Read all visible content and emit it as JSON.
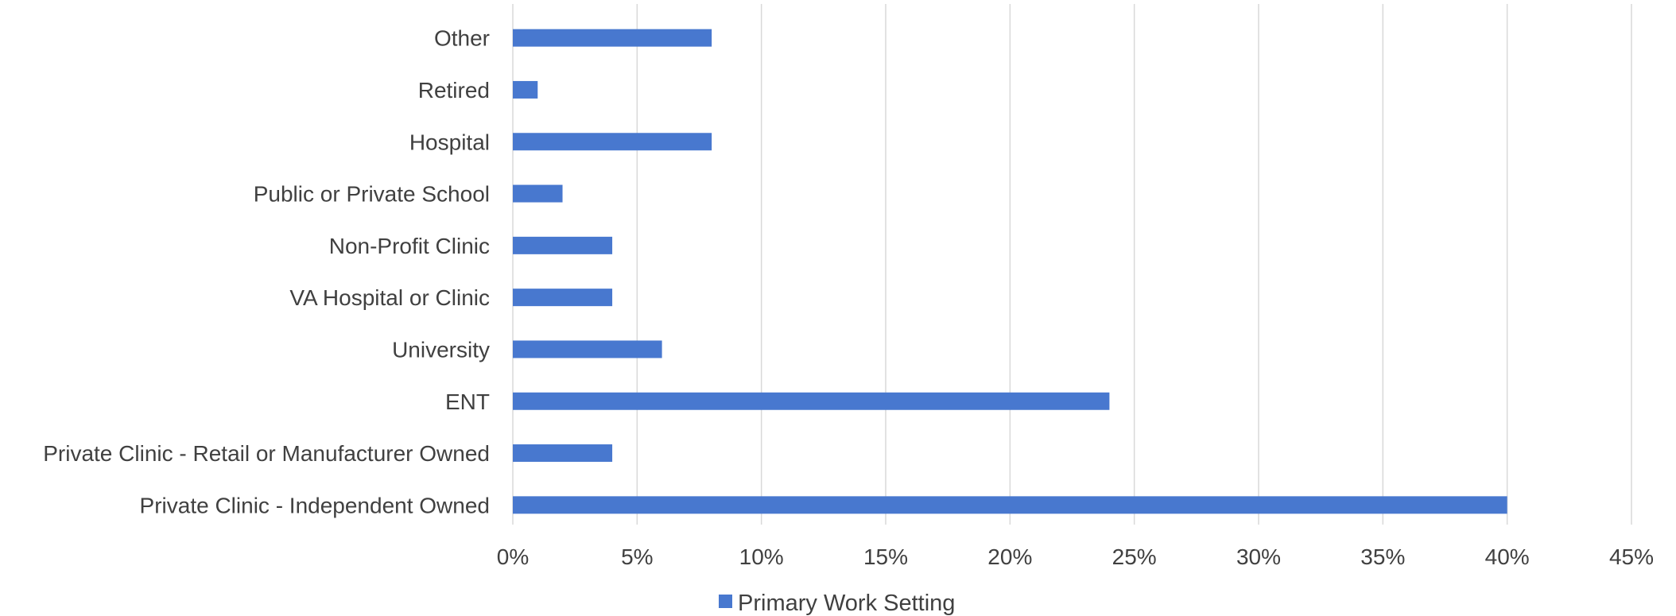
{
  "chart_data": {
    "type": "bar",
    "orientation": "horizontal",
    "categories": [
      "Other",
      "Retired",
      "Hospital",
      "Public or Private School",
      "Non-Profit Clinic",
      "VA Hospital or Clinic",
      "University",
      "ENT",
      "Private Clinic - Retail or Manufacturer Owned",
      "Private Clinic - Independent Owned"
    ],
    "series": [
      {
        "name": "Primary Work Setting",
        "values": [
          8,
          1,
          8,
          2,
          4,
          4,
          6,
          24,
          4,
          40
        ],
        "color": "#4878CF"
      }
    ],
    "x_ticks": [
      "0%",
      "5%",
      "10%",
      "15%",
      "20%",
      "25%",
      "30%",
      "35%",
      "40%",
      "45%"
    ],
    "xlim": [
      0,
      45
    ],
    "value_unit": "%",
    "title": "",
    "xlabel": "",
    "ylabel": "",
    "grid": "vertical",
    "legend": "bottom-center"
  }
}
